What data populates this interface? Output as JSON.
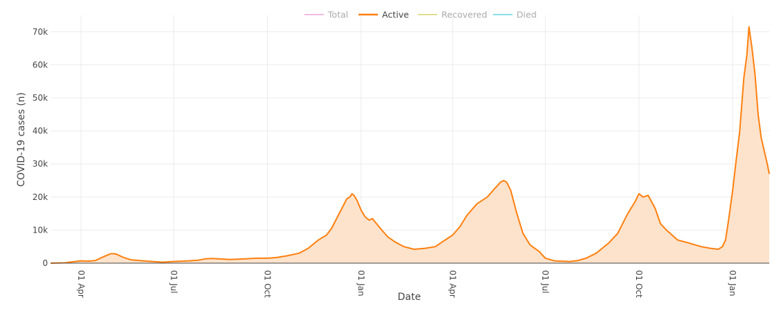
{
  "chart_data": {
    "type": "area",
    "xlabel": "Date",
    "ylabel": "COVID-19 cases (n)",
    "ylim": [
      0,
      75000
    ],
    "xlim": [
      "2020-03-02",
      "2022-02-06"
    ],
    "yticks": [
      0,
      10000,
      20000,
      30000,
      40000,
      50000,
      60000,
      70000
    ],
    "ytick_labels": [
      "0",
      "10k",
      "20k",
      "30k",
      "40k",
      "50k",
      "60k",
      "70k"
    ],
    "xticks": [
      "2020-04-01",
      "2020-07-01",
      "2020-10-01",
      "2021-01-01",
      "2021-04-01",
      "2021-07-01",
      "2021-10-01",
      "2022-01-01"
    ],
    "xtick_labels": [
      "01 Apr",
      "01 Jul",
      "01 Oct",
      "01 Jan",
      "01 Apr",
      "01 Jul",
      "01 Oct",
      "01 Jan"
    ],
    "grid": true,
    "legend_position": "top-center",
    "legend": [
      {
        "name": "Total",
        "color": "#e377c2",
        "active": false
      },
      {
        "name": "Active",
        "color": "#ff7f0e",
        "active": true
      },
      {
        "name": "Recovered",
        "color": "#bcbd22",
        "active": false
      },
      {
        "name": "Died",
        "color": "#17becf",
        "active": false
      }
    ],
    "series": [
      {
        "name": "Active",
        "color": "#ff7f0e",
        "fill": "#fde3cc",
        "points": [
          [
            "2020-03-02",
            0
          ],
          [
            "2020-03-16",
            100
          ],
          [
            "2020-03-26",
            500
          ],
          [
            "2020-04-01",
            700
          ],
          [
            "2020-04-08",
            600
          ],
          [
            "2020-04-15",
            800
          ],
          [
            "2020-04-22",
            1800
          ],
          [
            "2020-04-28",
            2600
          ],
          [
            "2020-05-01",
            2900
          ],
          [
            "2020-05-05",
            2800
          ],
          [
            "2020-05-12",
            1800
          ],
          [
            "2020-05-20",
            1000
          ],
          [
            "2020-06-05",
            600
          ],
          [
            "2020-06-20",
            300
          ],
          [
            "2020-07-01",
            500
          ],
          [
            "2020-07-15",
            700
          ],
          [
            "2020-07-25",
            900
          ],
          [
            "2020-08-01",
            1300
          ],
          [
            "2020-08-08",
            1400
          ],
          [
            "2020-08-25",
            1100
          ],
          [
            "2020-09-10",
            1300
          ],
          [
            "2020-09-20",
            1500
          ],
          [
            "2020-10-01",
            1500
          ],
          [
            "2020-10-10",
            1700
          ],
          [
            "2020-10-20",
            2200
          ],
          [
            "2020-11-01",
            3000
          ],
          [
            "2020-11-10",
            4500
          ],
          [
            "2020-11-20",
            7000
          ],
          [
            "2020-11-28",
            8500
          ],
          [
            "2020-12-03",
            10500
          ],
          [
            "2020-12-08",
            13500
          ],
          [
            "2020-12-13",
            16500
          ],
          [
            "2020-12-18",
            19500
          ],
          [
            "2020-12-21",
            20000
          ],
          [
            "2020-12-23",
            21000
          ],
          [
            "2020-12-25",
            20500
          ],
          [
            "2020-12-28",
            19000
          ],
          [
            "2021-01-01",
            16000
          ],
          [
            "2021-01-05",
            14000
          ],
          [
            "2021-01-09",
            13000
          ],
          [
            "2021-01-12",
            13500
          ],
          [
            "2021-01-16",
            12000
          ],
          [
            "2021-01-20",
            10500
          ],
          [
            "2021-01-27",
            8000
          ],
          [
            "2021-02-03",
            6500
          ],
          [
            "2021-02-12",
            5000
          ],
          [
            "2021-02-22",
            4200
          ],
          [
            "2021-03-05",
            4500
          ],
          [
            "2021-03-15",
            5000
          ],
          [
            "2021-03-22",
            6500
          ],
          [
            "2021-04-01",
            8500
          ],
          [
            "2021-04-08",
            11000
          ],
          [
            "2021-04-15",
            14500
          ],
          [
            "2021-04-25",
            18000
          ],
          [
            "2021-05-05",
            20000
          ],
          [
            "2021-05-12",
            22500
          ],
          [
            "2021-05-18",
            24500
          ],
          [
            "2021-05-21",
            25000
          ],
          [
            "2021-05-24",
            24500
          ],
          [
            "2021-05-28",
            22000
          ],
          [
            "2021-06-03",
            15000
          ],
          [
            "2021-06-09",
            9000
          ],
          [
            "2021-06-16",
            5500
          ],
          [
            "2021-06-25",
            3500
          ],
          [
            "2021-07-01",
            1500
          ],
          [
            "2021-07-10",
            700
          ],
          [
            "2021-07-25",
            500
          ],
          [
            "2021-08-02",
            800
          ],
          [
            "2021-08-10",
            1500
          ],
          [
            "2021-08-20",
            3000
          ],
          [
            "2021-09-01",
            6000
          ],
          [
            "2021-09-10",
            9000
          ],
          [
            "2021-09-20",
            15000
          ],
          [
            "2021-09-27",
            18500
          ],
          [
            "2021-10-01",
            21000
          ],
          [
            "2021-10-05",
            20000
          ],
          [
            "2021-10-10",
            20500
          ],
          [
            "2021-10-17",
            16500
          ],
          [
            "2021-10-22",
            12000
          ],
          [
            "2021-10-28",
            10000
          ],
          [
            "2021-11-08",
            7000
          ],
          [
            "2021-11-20",
            6000
          ],
          [
            "2021-12-01",
            5000
          ],
          [
            "2021-12-10",
            4500
          ],
          [
            "2021-12-18",
            4200
          ],
          [
            "2021-12-22",
            5000
          ],
          [
            "2021-12-25",
            7000
          ],
          [
            "2021-12-28",
            13000
          ],
          [
            "2022-01-01",
            22000
          ],
          [
            "2022-01-04",
            30000
          ],
          [
            "2022-01-08",
            40000
          ],
          [
            "2022-01-12",
            56000
          ],
          [
            "2022-01-15",
            63000
          ],
          [
            "2022-01-17",
            71500
          ],
          [
            "2022-01-20",
            65000
          ],
          [
            "2022-01-23",
            57000
          ],
          [
            "2022-01-26",
            45000
          ],
          [
            "2022-01-29",
            38000
          ],
          [
            "2022-02-01",
            34000
          ],
          [
            "2022-02-04",
            30000
          ],
          [
            "2022-02-06",
            27000
          ]
        ]
      }
    ]
  }
}
